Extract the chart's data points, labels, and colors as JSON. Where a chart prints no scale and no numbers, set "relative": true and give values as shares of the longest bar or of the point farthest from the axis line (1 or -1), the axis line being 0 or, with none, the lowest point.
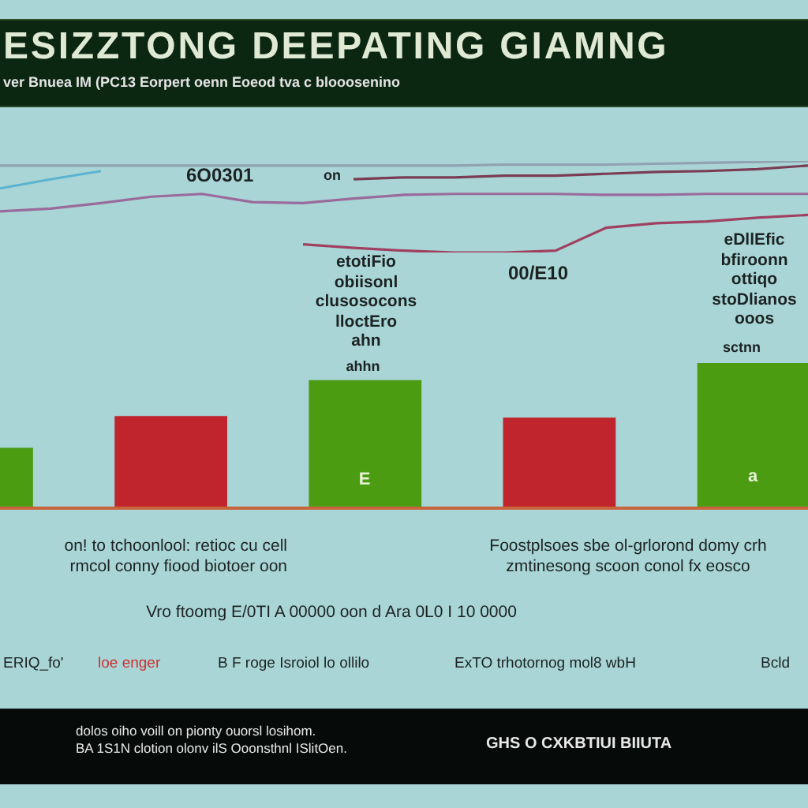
{
  "chart_data": [
    {
      "type": "line",
      "title": "ESIZZTONG DEEPATING GIAMNG",
      "subtitle": "ver Bnuea IM (PC13 Eorpert oenn Eoeod tva c blooosenino",
      "relative": true,
      "categories": [
        null,
        null,
        null,
        null,
        null,
        null,
        null,
        null,
        null,
        null,
        null,
        null,
        null,
        null,
        null,
        null,
        null
      ],
      "series": [
        {
          "color": "#8fa3b0",
          "values": [
            0.95,
            0.95,
            0.95,
            0.95,
            0.95,
            0.95,
            0.95,
            0.95,
            0.95,
            0.95,
            0.96,
            0.96,
            0.96,
            0.97,
            0.98,
            0.99,
            1
          ]
        },
        {
          "color": "#7a3c55",
          "values": [
            null,
            null,
            null,
            null,
            null,
            null,
            null,
            0.8,
            0.82,
            0.82,
            0.84,
            0.84,
            0.86,
            0.88,
            0.89,
            0.91,
            0.95
          ]
        },
        {
          "color": "#9a6a9c",
          "values": [
            0.45,
            0.48,
            0.54,
            0.61,
            0.64,
            0.55,
            0.54,
            0.59,
            0.63,
            0.64,
            0.64,
            0.64,
            0.63,
            0.63,
            0.64,
            0.64,
            0.64
          ]
        },
        {
          "color": "#5ab4d0",
          "values": [
            0.7,
            0.8,
            0.89,
            null,
            null,
            null,
            null,
            null,
            null,
            null,
            null,
            null,
            null,
            null,
            null,
            null,
            null
          ]
        },
        {
          "color": "#a04060",
          "values": [
            null,
            null,
            null,
            null,
            null,
            null,
            0.09,
            0.05,
            0.02,
            0,
            0,
            0.02,
            0.27,
            0.32,
            0.34,
            0.38,
            0.41
          ]
        }
      ],
      "annotations": [
        "6O0301",
        "on",
        "etotiFio\nobiisonl\nclusosocons\nlloctEro\nahn",
        "00/E10",
        "eDllEfic\nbfiroonn\nottiqo\nstoDlianos\nooos"
      ]
    },
    {
      "type": "bar",
      "relative": true,
      "categories": [
        null,
        null,
        null,
        null,
        null
      ],
      "values": [
        0.41,
        0.63,
        0.88,
        0.62,
        1
      ],
      "colors": [
        "#4c9c12",
        "#c0242c",
        "#4c9c12",
        "#c0242c",
        "#4c9c12"
      ],
      "annotations": [
        "ahhn",
        "E",
        "sctnn",
        "a",
        "on! to tchoonlool: retioc cu cell\nrmcol conny fiood biotoer oon",
        "Foostplsoes sbe ol-grlorond domy crh\nzmtinesong scoon conol fx eosco",
        "Vro ftoomg E/0TI A 00000 oon d Ara 0L0 I 10 0000",
        "ERIQ_fo'",
        "loe enger",
        "B F roge Isroiol lo ollilo",
        "ExTO trhotornog mol8 wbH",
        "Bcld",
        "dolos oiho voill on pionty ouorsl losihom.\nBA 1S1N clotion olonv ilS Ooonsthnl ISlitOen.",
        "GHS O CXKBTIUI BIIUTA"
      ]
    }
  ]
}
